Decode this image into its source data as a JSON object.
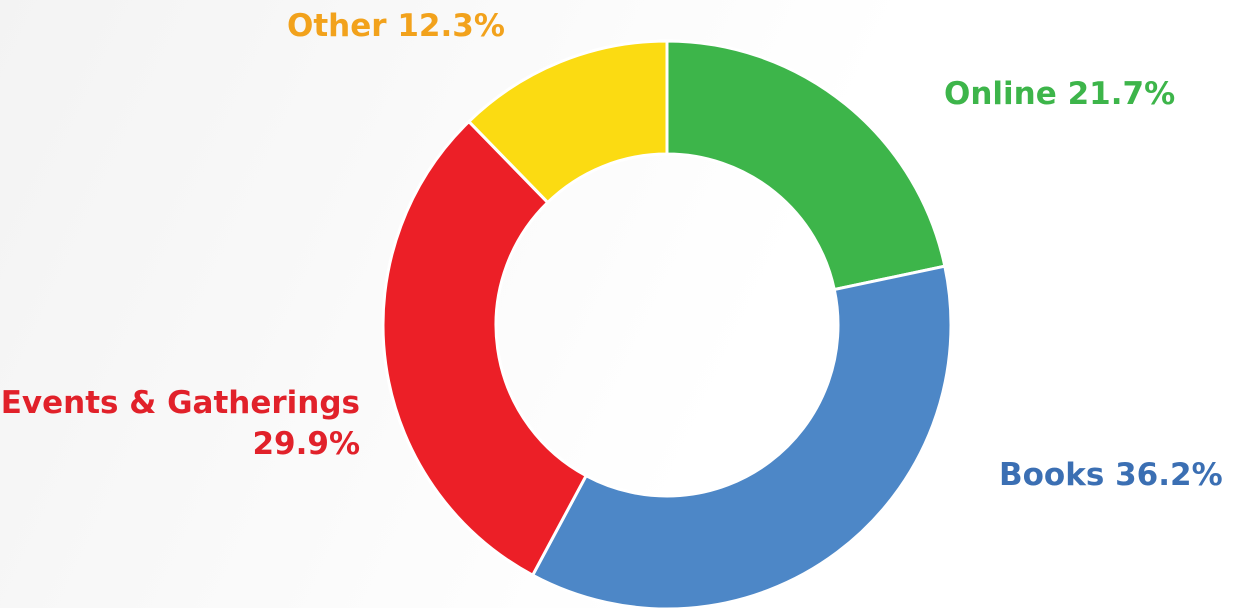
{
  "chart_data": {
    "type": "pie",
    "variant": "donut",
    "title": "",
    "legend": "none",
    "start_category": "Online",
    "direction": "clockwise",
    "slices": [
      {
        "label": "Online",
        "value": 21.7,
        "value_label": "21.7%",
        "color": "#3db54a"
      },
      {
        "label": "Books",
        "value": 36.2,
        "value_label": "36.2%",
        "color": "#4d87c7"
      },
      {
        "label": "Events & Gatherings",
        "value": 29.9,
        "value_label": "29.9%",
        "color": "#ec1f27"
      },
      {
        "label": "Other",
        "value": 12.3,
        "value_label": "12.3%",
        "color": "#fbdb12"
      }
    ],
    "label_colors": {
      "Online": "#3db54a",
      "Books": "#3b6fb3",
      "Events & Gatherings": "#e1212a",
      "Other": "#f2a21c"
    }
  }
}
